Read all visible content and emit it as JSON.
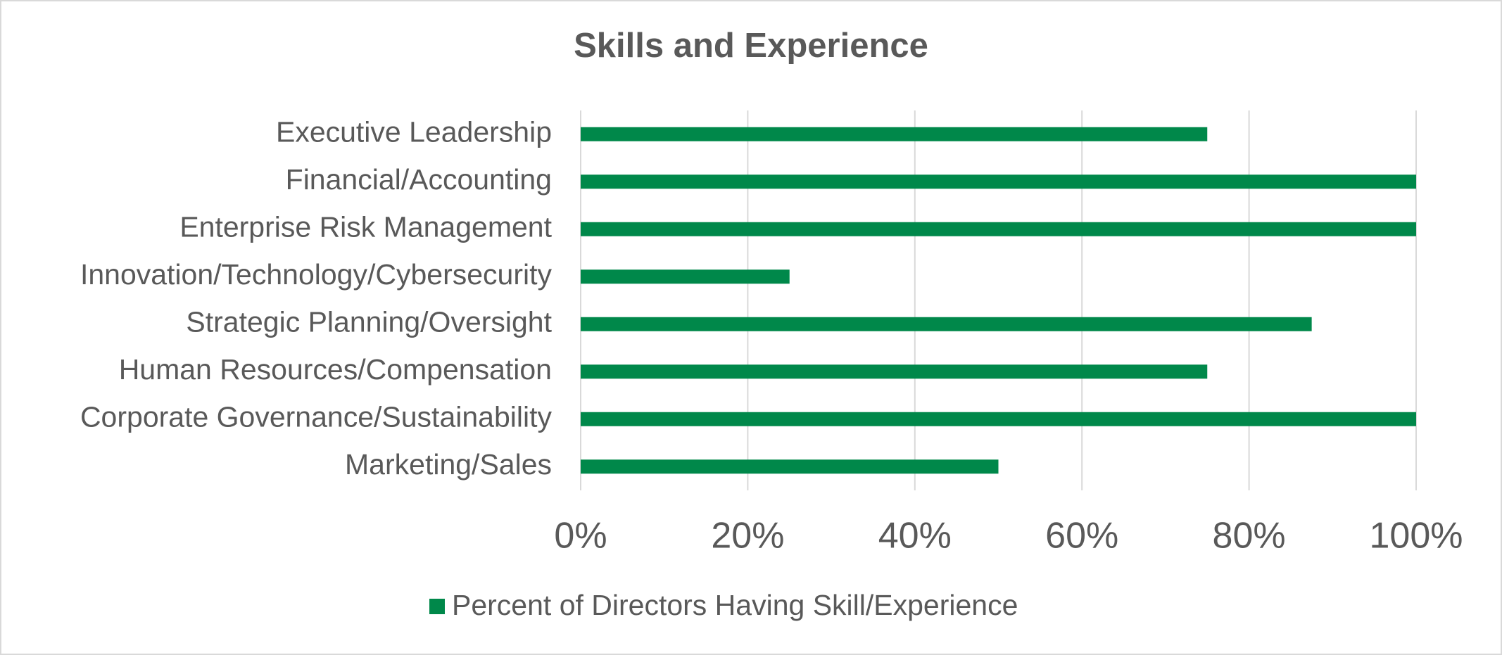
{
  "chart_data": {
    "type": "bar",
    "orientation": "horizontal",
    "title": "Skills and Experience",
    "categories": [
      "Executive Leadership",
      "Financial/Accounting",
      "Enterprise Risk Management",
      "Innovation/Technology/Cybersecurity",
      "Strategic Planning/Oversight",
      "Human Resources/Compensation",
      "Corporate Governance/Sustainability",
      "Marketing/Sales"
    ],
    "series": [
      {
        "name": "Percent of Directors Having Skill/Experience",
        "color": "#00884a",
        "values": [
          75,
          100,
          100,
          25,
          87.5,
          75,
          100,
          50
        ]
      }
    ],
    "xlim": [
      0,
      100
    ],
    "xticks": [
      {
        "value": 0,
        "label": "0%"
      },
      {
        "value": 20,
        "label": "20%"
      },
      {
        "value": 40,
        "label": "40%"
      },
      {
        "value": 60,
        "label": "60%"
      },
      {
        "value": 80,
        "label": "80%"
      },
      {
        "value": 100,
        "label": "100%"
      }
    ],
    "grid": true,
    "legend": "bottom"
  }
}
